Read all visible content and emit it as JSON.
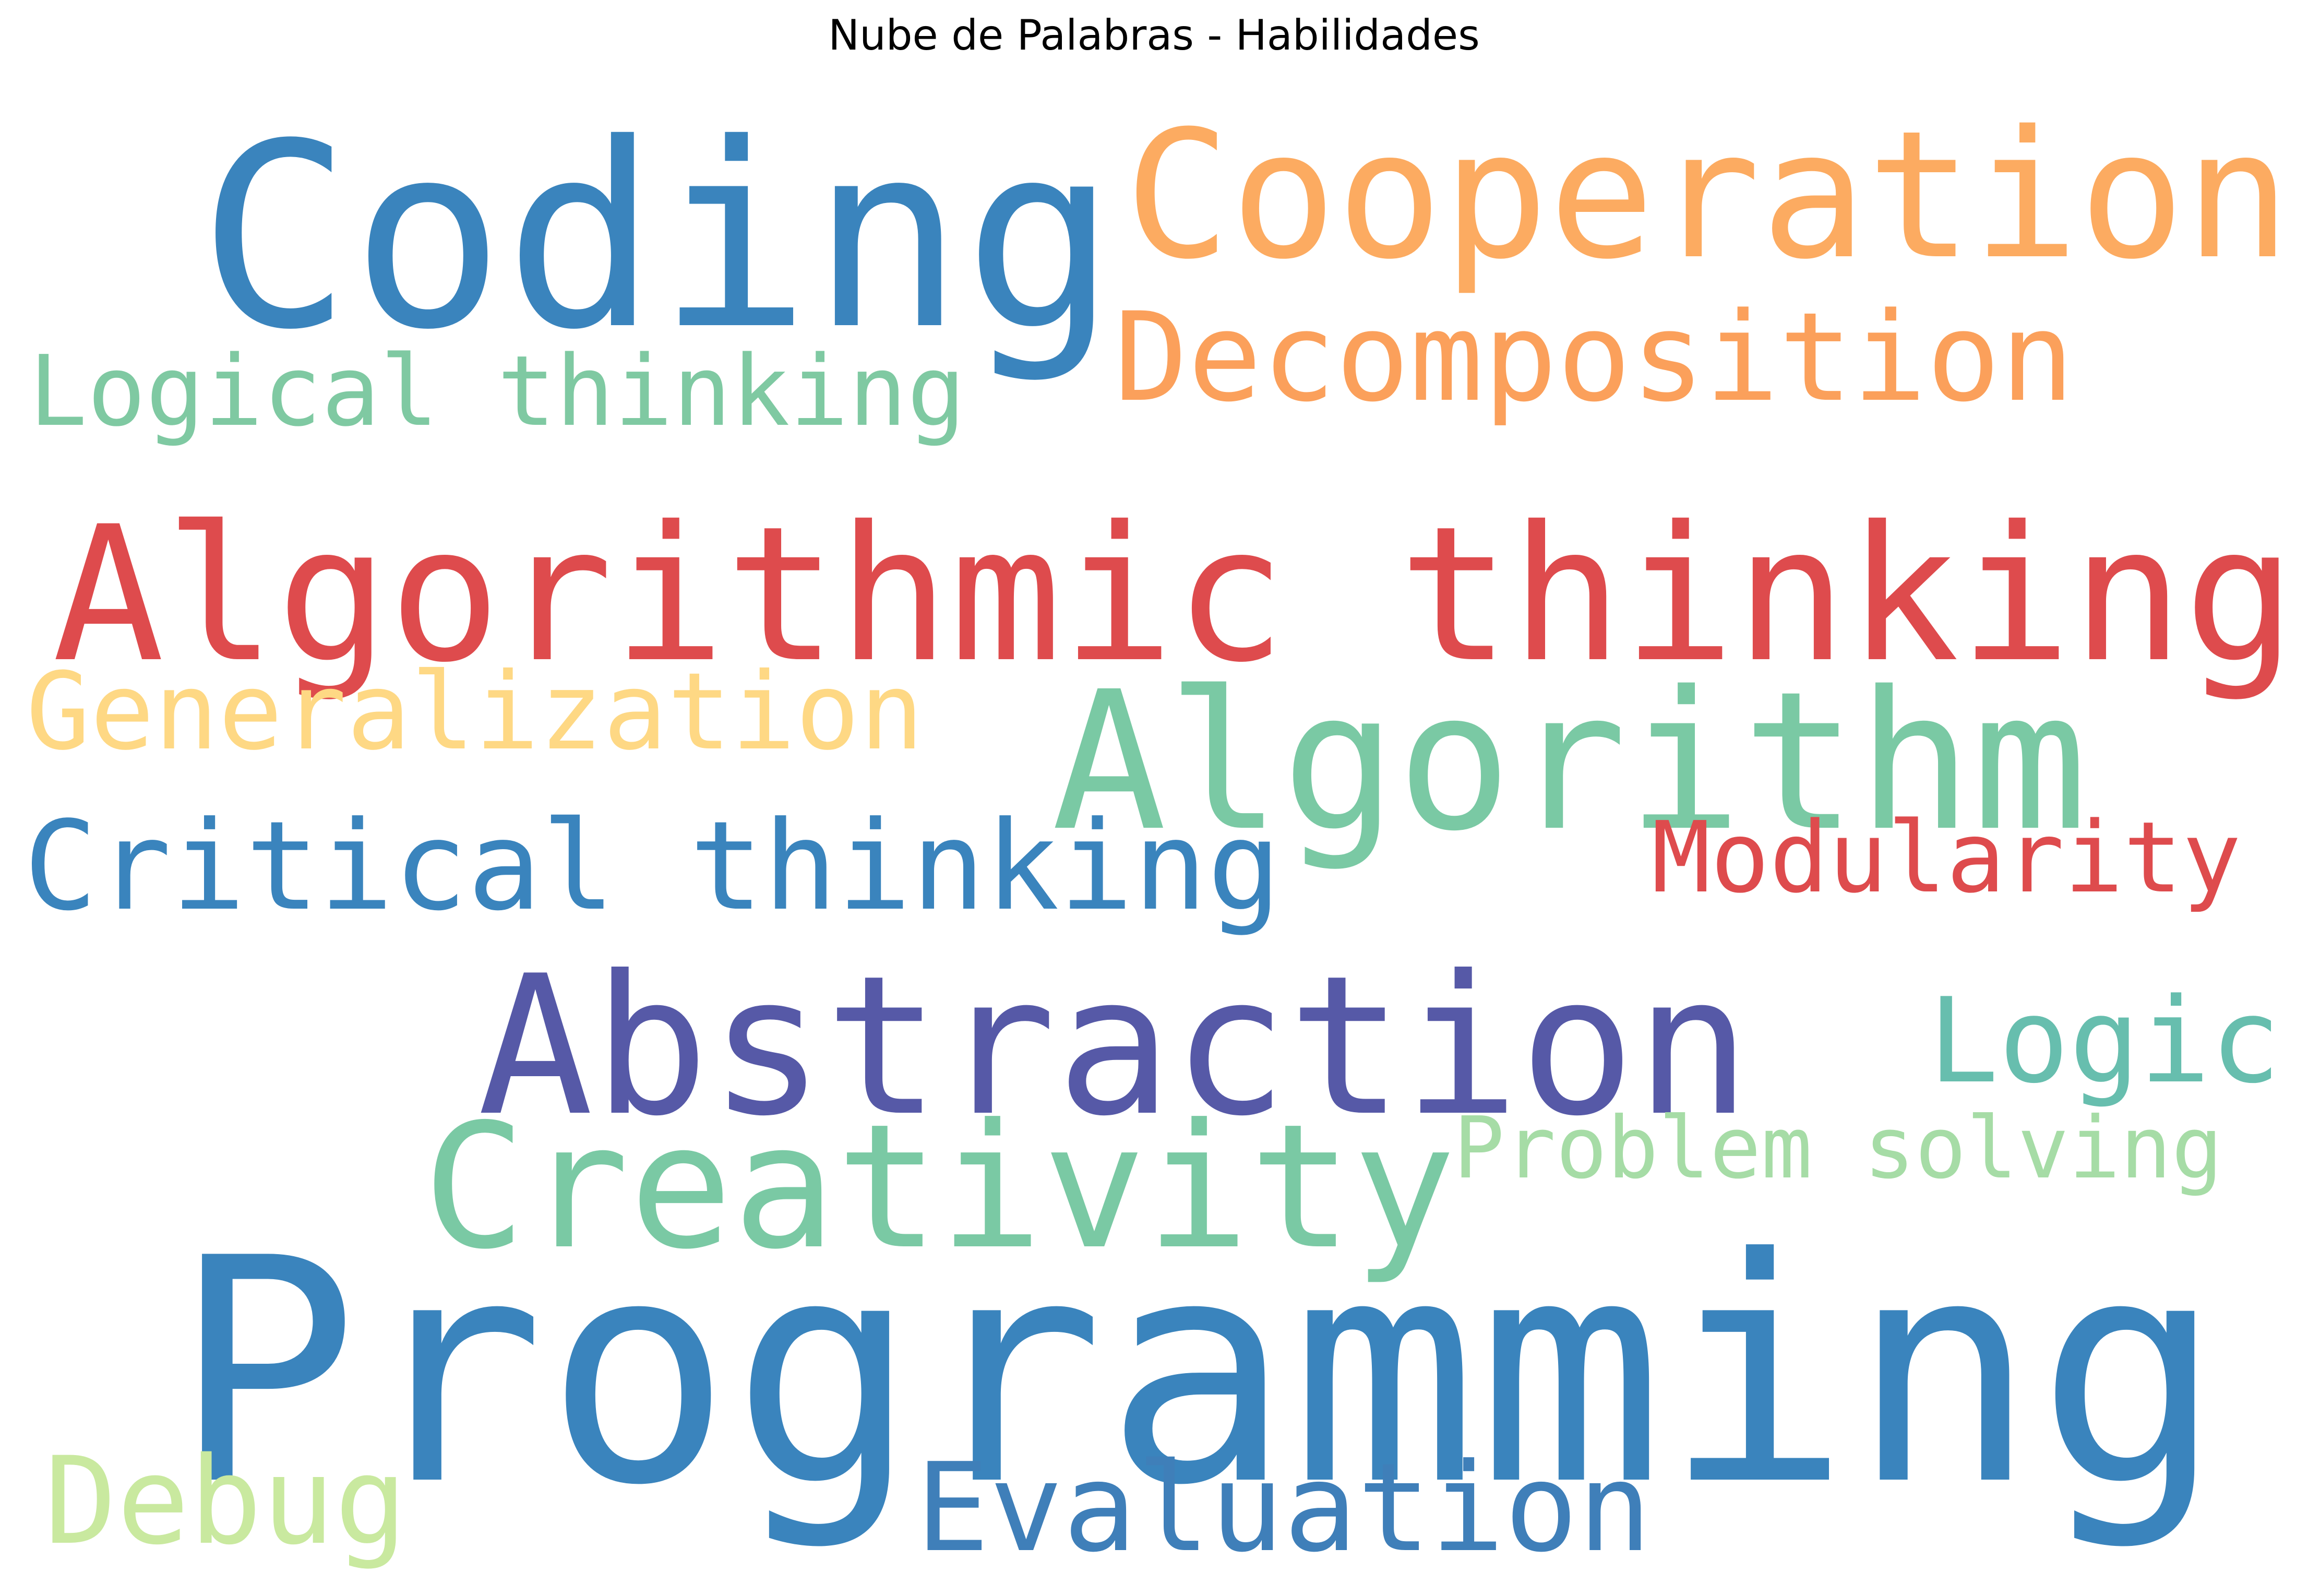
{
  "title": "Nube de Palabras - Habilidades",
  "palette": {
    "background": "#ffffff",
    "blue": "#3a84bd",
    "orange": "#fcab61",
    "red": "#de4b4d",
    "teal": "#7ac9a4",
    "yellow": "#fed884",
    "purple": "#5659a7",
    "green_blue": "#67beae",
    "light_green": "#a6dca6",
    "pale_green": "#c9e99f",
    "title": "#000000"
  },
  "words": [
    {
      "id": "coding",
      "text": "Coding",
      "color": "#3a84bd"
    },
    {
      "id": "cooperation",
      "text": "Cooperation",
      "color": "#fcab61"
    },
    {
      "id": "decomposition",
      "text": "Decomposition",
      "color": "#fba05b"
    },
    {
      "id": "logical-thinking",
      "text": "Logical thinking",
      "color": "#7fc9a2"
    },
    {
      "id": "algorithmic-thinking",
      "text": "Algorithmic thinking",
      "color": "#de4b4d"
    },
    {
      "id": "generalization",
      "text": "Generalization",
      "color": "#fed884"
    },
    {
      "id": "algorithm",
      "text": "Algorithm",
      "color": "#7ac9a4"
    },
    {
      "id": "critical-thinking",
      "text": "Critical thinking",
      "color": "#3a84bd"
    },
    {
      "id": "modularity",
      "text": "Modularity",
      "color": "#de4b4d"
    },
    {
      "id": "abstraction",
      "text": "Abstraction",
      "color": "#5659a7"
    },
    {
      "id": "logic",
      "text": "Logic",
      "color": "#67beae"
    },
    {
      "id": "creativity",
      "text": "Creativity",
      "color": "#7ac9a4"
    },
    {
      "id": "problem-solving",
      "text": "Problem solving",
      "color": "#a6dca6"
    },
    {
      "id": "programming",
      "text": "Programming",
      "color": "#3a84bd"
    },
    {
      "id": "debug",
      "text": "Debug",
      "color": "#c9e99f"
    },
    {
      "id": "evaluation",
      "text": "Evaluation",
      "color": "#3f7fb9"
    }
  ]
}
